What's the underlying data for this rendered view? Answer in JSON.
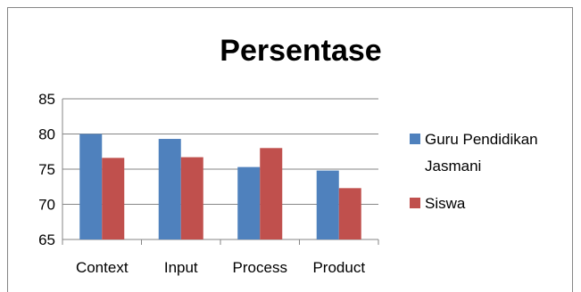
{
  "chart_data": {
    "type": "bar",
    "title": "Persentase",
    "categories": [
      "Context",
      "Input",
      "Process",
      "Product"
    ],
    "series": [
      {
        "name": "Guru Pendidikan Jasmani",
        "values": [
          80.0,
          79.3,
          75.3,
          74.8
        ],
        "color": "#4f81bd"
      },
      {
        "name": "Siswa",
        "values": [
          76.6,
          76.7,
          78.0,
          72.3
        ],
        "color": "#c0504d"
      }
    ],
    "ylim": [
      65,
      85
    ],
    "yticks": [
      65,
      70,
      75,
      80,
      85
    ],
    "grid": true,
    "legend": "right"
  }
}
